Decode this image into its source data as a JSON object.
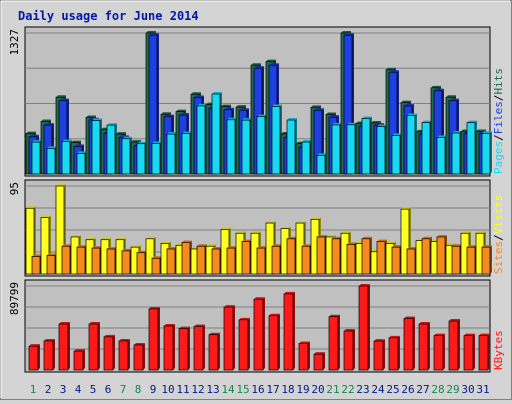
{
  "chart_data": {
    "type": "bar",
    "title": "Daily usage for June 2014",
    "categories": [
      "1",
      "2",
      "3",
      "4",
      "5",
      "6",
      "7",
      "8",
      "9",
      "10",
      "11",
      "12",
      "13",
      "14",
      "15",
      "16",
      "17",
      "18",
      "19",
      "20",
      "21",
      "22",
      "23",
      "24",
      "25",
      "26",
      "27",
      "28",
      "29",
      "30",
      "31"
    ],
    "weekend_days": [
      "1",
      "7",
      "8",
      "14",
      "15",
      "21",
      "22",
      "28",
      "29"
    ],
    "colors": {
      "hits": "#1e6e4e",
      "files": "#1f3fe0",
      "pages": "#17d9f2",
      "visits": "#ffff20",
      "sites": "#f58a1e",
      "kbytes": "#ff1a1a",
      "title": "#0018a8",
      "weekend_label": "#12875a",
      "weekday_label": "#001a8c",
      "panel_bg": "#c0c0c0"
    },
    "panels": [
      {
        "id": "hits-files-pages",
        "ymax_label": "1327",
        "ylim": [
          0,
          1327
        ],
        "legend": [
          {
            "text": "Pages",
            "key": "pages"
          },
          {
            "text": "/",
            "key": "sep"
          },
          {
            "text": "Files",
            "key": "files"
          },
          {
            "text": "/",
            "key": "sep"
          },
          {
            "text": "Hits",
            "key": "hits"
          }
        ],
        "series": [
          {
            "name": "Hits",
            "key": "hits",
            "values": [
              380,
              494,
              722,
              295,
              532,
              418,
              375,
              300,
              1327,
              562,
              587,
              751,
              653,
              634,
              629,
              1024,
              1058,
              376,
              285,
              627,
              560,
              1327,
              475,
              480,
              981,
              672,
              396,
              811,
              722,
              400,
              400
            ]
          },
          {
            "name": "Files",
            "key": "files",
            "values": [
              350,
              460,
              690,
              260,
              510,
              385,
              345,
              265,
              1307,
              540,
              555,
              720,
              620,
              605,
              600,
              996,
              1024,
              345,
              250,
              600,
              535,
              1307,
              450,
              460,
              958,
              640,
              375,
              783,
              690,
              380,
              380
            ]
          },
          {
            "name": "Pages",
            "key": "pages",
            "values": [
              300,
              241,
              305,
              194,
              503,
              460,
              332,
              285,
              287,
              376,
              380,
              641,
              753,
              510,
              507,
              540,
              635,
              508,
              301,
              175,
              462,
              463,
              522,
              446,
              362,
              551,
              484,
              345,
              386,
              483,
              383
            ]
          }
        ]
      },
      {
        "id": "visits-sites",
        "ymax_label": "95",
        "ylim": [
          0,
          95
        ],
        "legend": [
          {
            "text": "Sites",
            "key": "sites"
          },
          {
            "text": "/",
            "key": "sep"
          },
          {
            "text": "Visits",
            "key": "visits"
          }
        ],
        "series": [
          {
            "name": "Visits",
            "key": "visits",
            "values": [
              71,
              61,
              95,
              40,
              37,
              37,
              37,
              29,
              38,
              33,
              31,
              27,
              30,
              48,
              44,
              44,
              55,
              49,
              55,
              59,
              40,
              44,
              33,
              24,
              33,
              70,
              36,
              35,
              31,
              44,
              44
            ]
          },
          {
            "name": "Sites",
            "key": "sites",
            "values": [
              19,
              20,
              30,
              29,
              28,
              27,
              25,
              23,
              17,
              27,
              34,
              30,
              27,
              28,
              35,
              28,
              30,
              38,
              30,
              40,
              38,
              32,
              38,
              35,
              29,
              27,
              38,
              40,
              30,
              29,
              29
            ]
          }
        ]
      },
      {
        "id": "kbytes",
        "ymax_label": "89799",
        "ylim": [
          0,
          89799
        ],
        "legend": [
          {
            "text": "KBytes",
            "key": "kbytes"
          }
        ],
        "series": [
          {
            "name": "KBytes",
            "key": "kbytes",
            "values": [
              25470,
              31055,
              49150,
              20177,
              49150,
              35390,
              31055,
              26780,
              65330,
              47070,
              44200,
              46440,
              37700,
              67200,
              53650,
              75660,
              58000,
              81345,
              28280,
              16920,
              56980,
              41700,
              89799,
              30915,
              34400,
              55100,
              49150,
              36700,
              52350,
              36700,
              36700
            ]
          }
        ]
      }
    ]
  }
}
